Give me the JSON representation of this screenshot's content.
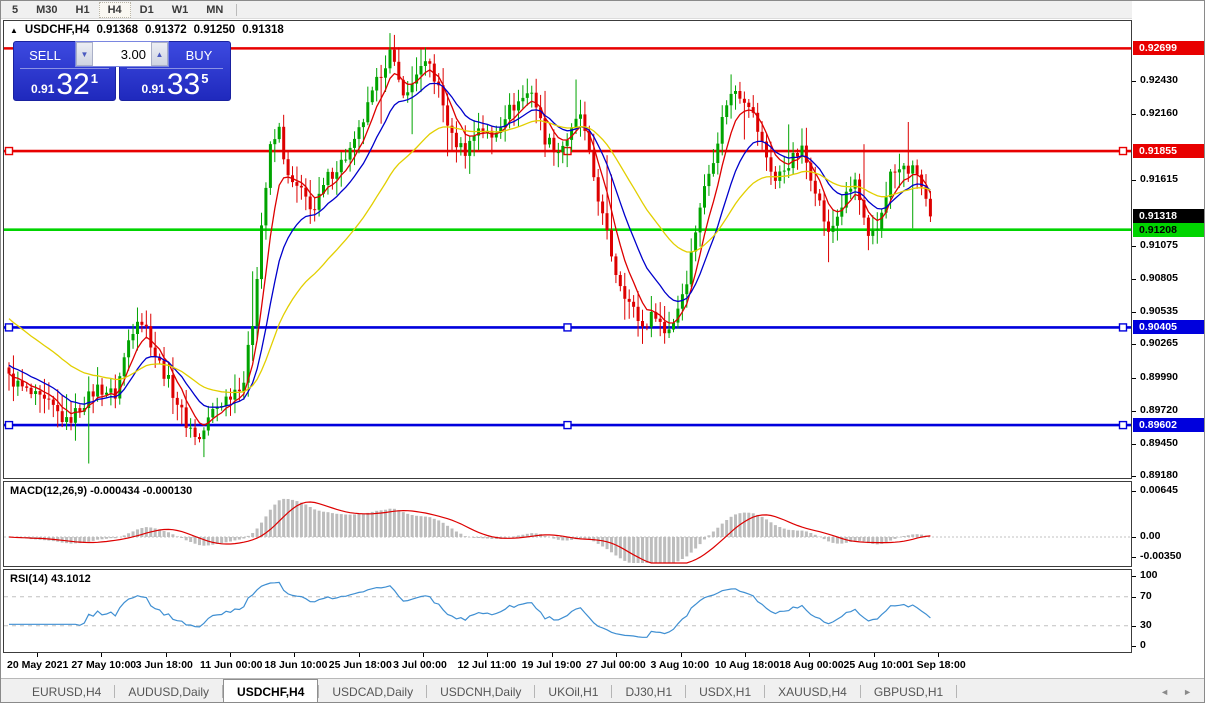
{
  "toolbar": {
    "timeframes": [
      "5",
      "M30",
      "H1",
      "H4",
      "D1",
      "W1",
      "MN"
    ],
    "active_timeframe": "H4"
  },
  "chart": {
    "title": {
      "arrow": "▲",
      "symbol": "USDCHF,H4",
      "ohlc": [
        "0.91368",
        "0.91372",
        "0.91250",
        "0.91318"
      ]
    }
  },
  "trade_panel": {
    "sell_label": "SELL",
    "buy_label": "BUY",
    "volume": "3.00",
    "spin_down_glyph": "▼",
    "spin_up_glyph": "▲",
    "sell_price": {
      "prefix": "0.91",
      "big": "32",
      "pip": "1"
    },
    "buy_price": {
      "prefix": "0.91",
      "big": "33",
      "pip": "5"
    }
  },
  "colors": {
    "level_red": "#e80000",
    "level_green": "#00d400",
    "level_blue": "#0000dd",
    "candle_up": "#00a400",
    "candle_down": "#dd0000",
    "ma_fast": "#dd0000",
    "ma_mid": "#0000cc",
    "ma_slow": "#e2cf00",
    "macd_hist": "#bdbdbd",
    "macd_signal": "#dd0000",
    "rsi_line": "#3f8fd2",
    "guide_dash": "#c0c0c0",
    "badge_current": "#000000"
  },
  "chart_data": {
    "type": "candlestick",
    "symbol": "USDCHF",
    "timeframe": "H4",
    "current_price": 0.91318,
    "price_axis": {
      "top": 0.92924,
      "bottom": 0.89167,
      "ticks": [
        "0.92430",
        "0.92160",
        "0.91615",
        "0.91075",
        "0.90805",
        "0.90535",
        "0.90265",
        "0.89990",
        "0.89720",
        "0.89450",
        "0.89180"
      ]
    },
    "badges": [
      {
        "label": "0.92699",
        "price": 0.92699,
        "bg": "#e80000",
        "fg": "#ffffff"
      },
      {
        "label": "0.91855",
        "price": 0.91855,
        "bg": "#e80000",
        "fg": "#ffffff"
      },
      {
        "label": "0.91318",
        "price": 0.91318,
        "bg": "#000000",
        "fg": "#ffffff"
      },
      {
        "label": "0.91208",
        "price": 0.91208,
        "bg": "#00d400",
        "fg": "#000000"
      },
      {
        "label": "0.90405",
        "price": 0.90405,
        "bg": "#0000dd",
        "fg": "#ffffff"
      },
      {
        "label": "0.89602",
        "price": 0.89602,
        "bg": "#0000dd",
        "fg": "#ffffff"
      }
    ],
    "levels": [
      {
        "price": 0.92699,
        "color": "level_red",
        "handles": false
      },
      {
        "price": 0.91855,
        "color": "level_red",
        "handles": true
      },
      {
        "price": 0.91208,
        "color": "level_green",
        "handles": false
      },
      {
        "price": 0.90405,
        "color": "level_blue",
        "handles": true
      },
      {
        "price": 0.89602,
        "color": "level_blue",
        "handles": true
      }
    ],
    "candles": {
      "count": 209,
      "close_anchors": [
        [
          0,
          0.8999
        ],
        [
          5,
          0.8985
        ],
        [
          10,
          0.8974
        ],
        [
          13,
          0.8962
        ],
        [
          17,
          0.8979
        ],
        [
          20,
          0.8991
        ],
        [
          24,
          0.8985
        ],
        [
          27,
          0.903
        ],
        [
          29,
          0.905
        ],
        [
          31,
          0.904
        ],
        [
          33,
          0.9018
        ],
        [
          36,
          0.8996
        ],
        [
          40,
          0.8962
        ],
        [
          43,
          0.8948
        ],
        [
          46,
          0.8972
        ],
        [
          50,
          0.8986
        ],
        [
          53,
          0.8997
        ],
        [
          55,
          0.9045
        ],
        [
          57,
          0.9125
        ],
        [
          59,
          0.9187
        ],
        [
          61,
          0.9203
        ],
        [
          63,
          0.9162
        ],
        [
          66,
          0.9151
        ],
        [
          69,
          0.9137
        ],
        [
          72,
          0.9164
        ],
        [
          75,
          0.9176
        ],
        [
          78,
          0.9191
        ],
        [
          81,
          0.9221
        ],
        [
          84,
          0.9251
        ],
        [
          86,
          0.9266
        ],
        [
          88,
          0.9242
        ],
        [
          90,
          0.9231
        ],
        [
          92,
          0.9251
        ],
        [
          95,
          0.9256
        ],
        [
          97,
          0.9236
        ],
        [
          100,
          0.9196
        ],
        [
          103,
          0.9186
        ],
        [
          106,
          0.9206
        ],
        [
          109,
          0.9196
        ],
        [
          112,
          0.9216
        ],
        [
          115,
          0.9226
        ],
        [
          118,
          0.9236
        ],
        [
          121,
          0.9196
        ],
        [
          124,
          0.9186
        ],
        [
          127,
          0.9201
        ],
        [
          129,
          0.9216
        ],
        [
          131,
          0.9181
        ],
        [
          134,
          0.9131
        ],
        [
          137,
          0.9086
        ],
        [
          140,
          0.9061
        ],
        [
          143,
          0.9041
        ],
        [
          146,
          0.9053
        ],
        [
          148,
          0.9036
        ],
        [
          150,
          0.9046
        ],
        [
          153,
          0.9081
        ],
        [
          156,
          0.9141
        ],
        [
          159,
          0.9181
        ],
        [
          162,
          0.9226
        ],
        [
          164,
          0.9236
        ],
        [
          167,
          0.9226
        ],
        [
          170,
          0.9191
        ],
        [
          173,
          0.9161
        ],
        [
          176,
          0.9176
        ],
        [
          179,
          0.9186
        ],
        [
          182,
          0.9156
        ],
        [
          185,
          0.9116
        ],
        [
          188,
          0.9141
        ],
        [
          191,
          0.9161
        ],
        [
          194,
          0.9111
        ],
        [
          196,
          0.9121
        ],
        [
          199,
          0.9166
        ],
        [
          202,
          0.9171
        ],
        [
          205,
          0.9168
        ],
        [
          208,
          0.91318
        ]
      ]
    },
    "moving_averages": [
      {
        "period": 6,
        "color": "ma_fast",
        "init_offset": 0
      },
      {
        "period": 14,
        "color": "ma_mid",
        "init_offset": 0.0008
      },
      {
        "period": 34,
        "color": "ma_slow",
        "init_offset": 0.0048
      }
    ],
    "macd": {
      "name": "MACD(12,26,9)",
      "values": "-0.000434 -0.000130",
      "axis": [
        {
          "v": 0.00645,
          "label": "0.00645"
        },
        {
          "v": 0,
          "label": "0.00"
        },
        {
          "v": -0.0035,
          "label": "-0.00350"
        }
      ],
      "range_top": 0.00645
    },
    "rsi": {
      "name": "RSI(14)",
      "value": "43.1012",
      "axis": [
        {
          "v": 100,
          "label": "100"
        },
        {
          "v": 70,
          "label": "70"
        },
        {
          "v": 30,
          "label": "30"
        },
        {
          "v": 0,
          "label": "0"
        }
      ],
      "guides": [
        70,
        30
      ]
    },
    "time_axis": [
      "20 May 2021",
      "27 May 10:00",
      "3 Jun 18:00",
      "11 Jun 00:00",
      "18 Jun 10:00",
      "25 Jun 18:00",
      "3 Jul 00:00",
      "12 Jul 11:00",
      "19 Jul 19:00",
      "27 Jul 00:00",
      "3 Aug 10:00",
      "10 Aug 18:00",
      "18 Aug 00:00",
      "25 Aug 10:00",
      "1 Sep 18:00"
    ]
  },
  "tabs": {
    "items": [
      "EURUSD,H4",
      "AUDUSD,Daily",
      "USDCHF,H4",
      "USDCAD,Daily",
      "USDCNH,Daily",
      "UKOil,H1",
      "DJ30,H1",
      "USDX,H1",
      "XAUUSD,H4",
      "GBPUSD,H1"
    ],
    "active": "USDCHF,H4",
    "scroll_left": "◄",
    "scroll_right": "►"
  }
}
